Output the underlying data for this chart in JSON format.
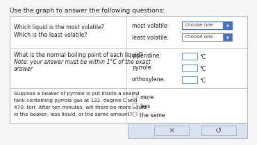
{
  "title": "Use the graph to answer the following questions:",
  "title_fontsize": 6.5,
  "bg_color": "#f5f5f5",
  "row1_left_lines": [
    "Which liquid is the most volatile?",
    "Which is the least volatile?"
  ],
  "row1_right_labels": [
    "most volatile:",
    "least volatile:"
  ],
  "row1_widget1_text": "choose one",
  "row1_widget2_text": "choose one",
  "row2_left_line1": "What is the normal boiling point of each liquid?",
  "row2_left_line2": "Note: your answer must be within 1°C of the exact",
  "row2_left_line3": "answer",
  "row2_right_labels": [
    "piperidine:",
    "pyrrole:",
    "orthoxylene:"
  ],
  "row2_unit": "°C",
  "row3_left_lines": [
    "Suppose a beaker of pyrrole is put inside a sealed",
    "tank containing pyrrole gas at 122. degree C and",
    "470. torr. After ten minutes, will there be more liquid",
    "in the beaker, less liquid, or the same amount?"
  ],
  "row3_options": [
    "more",
    "less",
    "the same"
  ],
  "cell_bg": "#ffffff",
  "cell_border": "#bbbbbb",
  "widget1_border": "#4472c4",
  "widget1_btn_bg": "#4472c4",
  "widget2_border": "#888888",
  "widget2_btn_bg": "#4472c4",
  "input_border": "#6699cc",
  "footer_bg": "#d9e2f0",
  "footer_border": "#aaaaaa",
  "text_color": "#222222",
  "radio_color": "#888888"
}
